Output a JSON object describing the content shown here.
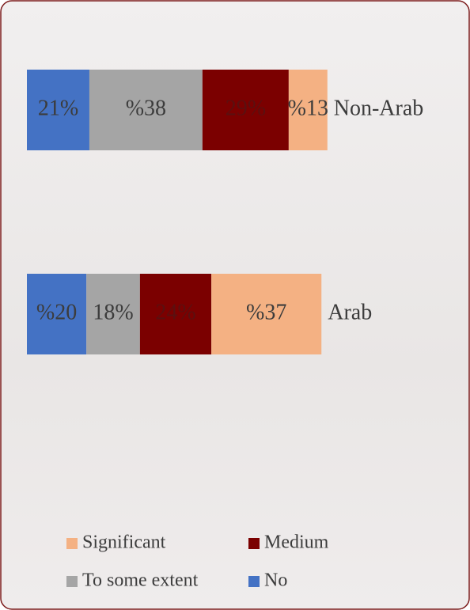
{
  "chart_data": {
    "type": "stacked-barh",
    "categories": [
      "Non-Arab",
      "Arab"
    ],
    "series": [
      {
        "name": "No",
        "color": "#4472c4",
        "values": [
          21,
          20
        ],
        "value_labels": [
          "21%",
          "%20"
        ]
      },
      {
        "name": "To some extent",
        "color": "#a5a5a5",
        "values": [
          38,
          18
        ],
        "value_labels": [
          "%38",
          "18%"
        ]
      },
      {
        "name": "Medium",
        "color": "#7b0000",
        "values": [
          29,
          24
        ],
        "value_labels": [
          "29%",
          "24%"
        ]
      },
      {
        "name": "Significant",
        "color": "#f4b183",
        "values": [
          13,
          37
        ],
        "value_labels": [
          "%13",
          "%37"
        ]
      }
    ]
  }
}
